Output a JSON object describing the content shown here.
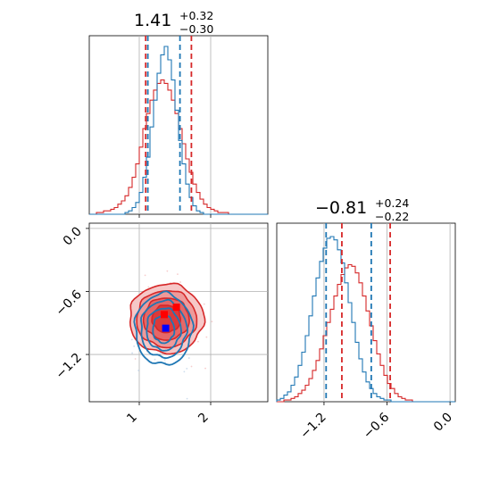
{
  "chart_data": {
    "type": "corner",
    "parameters": [
      {
        "title": {
          "main": "1.41",
          "sup": "+0.32",
          "sub": "−0.30"
        },
        "range": [
          0.3,
          2.8
        ],
        "ticks": [
          {
            "v": 1,
            "label": "1"
          },
          {
            "v": 2,
            "label": "2"
          }
        ],
        "quantiles": {
          "blue": [
            1.12,
            1.57
          ],
          "red": [
            1.09,
            1.73
          ]
        }
      },
      {
        "title": {
          "main": "−0.81",
          "sup": "+0.24",
          "sub": "−0.22"
        },
        "range": [
          -1.65,
          0.05
        ],
        "ticks": [
          {
            "v": -1.2,
            "label": "−1.2"
          },
          {
            "v": -0.6,
            "label": "−0.6"
          },
          {
            "v": 0.0,
            "label": "0.0"
          }
        ],
        "quantiles": {
          "blue": [
            -1.18,
            -0.75
          ],
          "red": [
            -1.03,
            -0.57
          ]
        }
      }
    ],
    "histograms": {
      "x": {
        "bins": [
          0.3,
          2.8,
          50
        ],
        "blue": [
          0,
          0,
          0,
          0,
          0,
          0,
          0,
          0,
          0,
          0,
          1,
          2,
          4,
          7,
          13,
          22,
          34,
          52,
          68,
          84,
          95,
          100,
          92,
          80,
          62,
          44,
          30,
          18,
          10,
          5,
          2,
          1,
          0,
          0,
          0,
          0,
          0,
          0,
          0,
          0,
          0,
          0,
          0,
          0,
          0,
          0,
          0,
          0,
          0,
          0
        ],
        "red": [
          0,
          0,
          1,
          1,
          2,
          2,
          3,
          4,
          6,
          8,
          11,
          16,
          22,
          30,
          40,
          51,
          60,
          68,
          74,
          78,
          80,
          78,
          74,
          68,
          60,
          51,
          42,
          33,
          25,
          18,
          13,
          9,
          6,
          4,
          3,
          2,
          1,
          1,
          1,
          0,
          0,
          0,
          0,
          0,
          0,
          0,
          0,
          0,
          0,
          0
        ]
      },
      "y": {
        "bins": [
          -1.65,
          0.05,
          50
        ],
        "blue": [
          1,
          2,
          4,
          6,
          10,
          15,
          22,
          30,
          40,
          52,
          64,
          75,
          85,
          93,
          99,
          100,
          98,
          92,
          84,
          72,
          60,
          48,
          36,
          26,
          18,
          12,
          8,
          5,
          3,
          2,
          1,
          1,
          0,
          0,
          0,
          0,
          0,
          0,
          0,
          0,
          0,
          0,
          0,
          0,
          0,
          0,
          0,
          0,
          0,
          0
        ],
        "red": [
          0,
          0,
          1,
          1,
          2,
          3,
          5,
          7,
          10,
          14,
          19,
          25,
          32,
          40,
          48,
          56,
          64,
          71,
          77,
          81,
          83,
          82,
          78,
          72,
          64,
          55,
          46,
          37,
          29,
          22,
          16,
          11,
          8,
          5,
          3,
          2,
          1,
          1,
          0,
          0,
          0,
          0,
          0,
          0,
          0,
          0,
          0,
          0,
          0,
          0
        ]
      }
    },
    "hist2d": {
      "red": {
        "center": [
          1.38,
          -0.86
        ],
        "levels": [
          [
            0.52,
            0.33
          ],
          [
            0.42,
            0.27
          ],
          [
            0.32,
            0.2
          ],
          [
            0.2,
            0.13
          ]
        ]
      },
      "blue": {
        "center": [
          1.34,
          -0.96
        ],
        "levels": [
          [
            0.4,
            0.34
          ],
          [
            0.32,
            0.27
          ],
          [
            0.24,
            0.2
          ],
          [
            0.15,
            0.13
          ]
        ]
      }
    },
    "truth_markers": [
      {
        "color": "red",
        "x": 1.35,
        "y": -0.82
      },
      {
        "color": "red",
        "x": 1.52,
        "y": -0.75
      },
      {
        "color": "blue",
        "x": 1.37,
        "y": -0.95
      }
    ],
    "colors": {
      "red": "#d62728",
      "blue": "#1f77b4",
      "grid": "#b0b0b0"
    },
    "grid": true
  }
}
